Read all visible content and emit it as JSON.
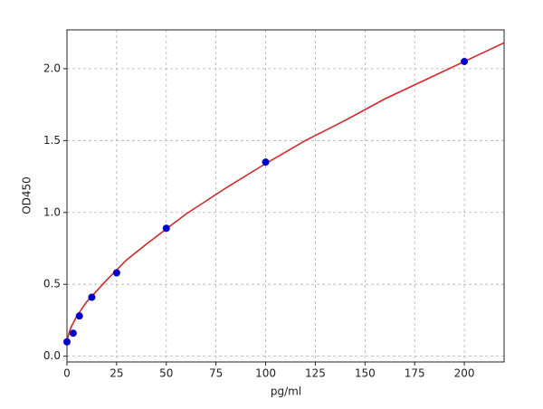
{
  "chart_data": {
    "type": "scatter",
    "xlabel": "pg/ml",
    "ylabel": "OD450",
    "xlim": [
      0,
      220
    ],
    "ylim": [
      -0.04,
      2.27
    ],
    "xticks": [
      0,
      25,
      50,
      75,
      100,
      125,
      150,
      175,
      200
    ],
    "yticks": [
      {
        "value": 0,
        "label": "0.0"
      },
      0.5,
      {
        "value": 1,
        "label": "1.0"
      },
      1.5,
      {
        "value": 2,
        "label": "2.0"
      }
    ],
    "grid": true,
    "series": [
      {
        "mode": "line",
        "color": "#d62728",
        "x": [
          0,
          1,
          2,
          5,
          10,
          20,
          30,
          40,
          60,
          80,
          100,
          120,
          140,
          160,
          180,
          200,
          220
        ],
        "values": [
          0.1,
          0.16,
          0.2,
          0.28,
          0.38,
          0.53,
          0.67,
          0.78,
          0.99,
          1.17,
          1.34,
          1.5,
          1.64,
          1.79,
          1.92,
          2.05,
          2.18
        ]
      },
      {
        "mode": "markers",
        "color": "#0000cc",
        "x": [
          0,
          3.125,
          6.25,
          12.5,
          25,
          50,
          100,
          200
        ],
        "values": [
          0.1,
          0.16,
          0.28,
          0.41,
          0.58,
          0.89,
          1.35,
          2.05
        ]
      }
    ]
  }
}
